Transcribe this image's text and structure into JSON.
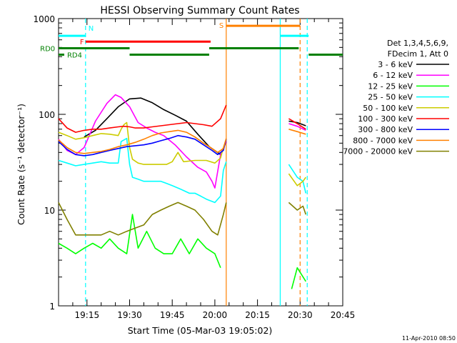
{
  "chart_data": {
    "type": "line",
    "title": "HESSI Observing Summary Count Rates",
    "xlabel": "Start Time (05-Mar-03 19:05:02)",
    "ylabel": "Count Rate (s⁻¹ detector⁻¹)",
    "y_scale": "log",
    "xlim_minutes": [
      0,
      100
    ],
    "ylim": [
      1,
      1000
    ],
    "x_ticks": [
      {
        "label": "19:15",
        "t": 10
      },
      {
        "label": "19:30",
        "t": 25
      },
      {
        "label": "19:45",
        "t": 40
      },
      {
        "label": "20:00",
        "t": 55
      },
      {
        "label": "20:15",
        "t": 70
      },
      {
        "label": "20:30",
        "t": 85
      },
      {
        "label": "20:45",
        "t": 100
      }
    ],
    "y_ticks": [
      {
        "label": "1",
        "v": 1
      },
      {
        "label": "10",
        "v": 10
      },
      {
        "label": "100",
        "v": 100
      },
      {
        "label": "1000",
        "v": 1000
      }
    ],
    "legend": {
      "placement": "right",
      "header": [
        "Det 1,3,4,5,6,9,",
        "FDecim 1, Att 0"
      ]
    },
    "series": [
      {
        "name": "3 - 6 keV",
        "color": "#000000",
        "points": [
          [
            9,
            58
          ],
          [
            13,
            68
          ],
          [
            17,
            90
          ],
          [
            21,
            120
          ],
          [
            25,
            145
          ],
          [
            29,
            148
          ],
          [
            33,
            132
          ],
          [
            37,
            112
          ],
          [
            41,
            98
          ],
          [
            45,
            85
          ],
          [
            49,
            62
          ],
          [
            53,
            46
          ],
          [
            57,
            38
          ],
          [
            59,
            52
          ],
          null,
          [
            81,
            85
          ],
          [
            84,
            82
          ],
          [
            87,
            76
          ]
        ]
      },
      {
        "name": "6 - 12 keV",
        "color": "#ff00ff",
        "points": [
          [
            0,
            55
          ],
          [
            3,
            42
          ],
          [
            6,
            38
          ],
          [
            9,
            45
          ],
          [
            13,
            85
          ],
          [
            17,
            130
          ],
          [
            20,
            160
          ],
          [
            22,
            150
          ],
          [
            25,
            120
          ],
          [
            28,
            82
          ],
          [
            31,
            72
          ],
          [
            34,
            65
          ],
          [
            37,
            60
          ],
          [
            41,
            48
          ],
          [
            45,
            36
          ],
          [
            49,
            28
          ],
          [
            52,
            25
          ],
          [
            54,
            20
          ],
          [
            55,
            17
          ],
          [
            57,
            38
          ],
          [
            59,
            52
          ],
          null,
          [
            81,
            80
          ],
          [
            84,
            75
          ],
          [
            87,
            68
          ]
        ]
      },
      {
        "name": "12 - 25 keV",
        "color": "#00ff00",
        "points": [
          [
            0,
            4.5
          ],
          [
            3,
            4
          ],
          [
            6,
            3.5
          ],
          [
            9,
            4
          ],
          [
            12,
            4.5
          ],
          [
            15,
            4
          ],
          [
            18,
            5
          ],
          [
            21,
            4
          ],
          [
            24,
            3.5
          ],
          [
            26,
            9
          ],
          [
            28,
            4
          ],
          [
            31,
            6
          ],
          [
            34,
            4
          ],
          [
            37,
            3.5
          ],
          [
            40,
            3.5
          ],
          [
            43,
            5
          ],
          [
            46,
            3.5
          ],
          [
            49,
            5
          ],
          [
            52,
            4
          ],
          [
            55,
            3.5
          ],
          [
            57,
            2.5
          ],
          null,
          [
            82,
            1.5
          ],
          [
            84,
            2.5
          ],
          [
            87,
            1.8
          ]
        ]
      },
      {
        "name": "25 - 50 keV",
        "color": "#00ffff",
        "points": [
          [
            0,
            33
          ],
          [
            3,
            31
          ],
          [
            6,
            29
          ],
          [
            9,
            30
          ],
          [
            12,
            31
          ],
          [
            15,
            32
          ],
          [
            18,
            31
          ],
          [
            21,
            31
          ],
          [
            22,
            52
          ],
          [
            24,
            56
          ],
          [
            25,
            30
          ],
          [
            26,
            22
          ],
          [
            28,
            21
          ],
          [
            30,
            20
          ],
          [
            33,
            20
          ],
          [
            36,
            20
          ],
          [
            38,
            19
          ],
          [
            40,
            18
          ],
          [
            42,
            17
          ],
          [
            44,
            16
          ],
          [
            46,
            15
          ],
          [
            48,
            15
          ],
          [
            50,
            14
          ],
          [
            52,
            13
          ],
          [
            55,
            12
          ],
          [
            57,
            14
          ],
          [
            58,
            26
          ],
          [
            59,
            32
          ],
          null,
          [
            81,
            30
          ],
          [
            84,
            22
          ],
          [
            86,
            20
          ],
          [
            87,
            15
          ]
        ]
      },
      {
        "name": "50 - 100 keV",
        "color": "#cccc00",
        "points": [
          [
            0,
            65
          ],
          [
            3,
            60
          ],
          [
            6,
            55
          ],
          [
            9,
            57
          ],
          [
            12,
            60
          ],
          [
            15,
            63
          ],
          [
            18,
            62
          ],
          [
            21,
            60
          ],
          [
            22,
            70
          ],
          [
            23,
            78
          ],
          [
            24,
            82
          ],
          [
            25,
            45
          ],
          [
            26,
            34
          ],
          [
            28,
            31
          ],
          [
            30,
            30
          ],
          [
            34,
            30
          ],
          [
            38,
            30
          ],
          [
            40,
            32
          ],
          [
            42,
            40
          ],
          [
            44,
            32
          ],
          [
            48,
            33
          ],
          [
            52,
            33
          ],
          [
            55,
            31
          ],
          [
            57,
            35
          ],
          [
            58,
            45
          ],
          [
            59,
            55
          ],
          null,
          [
            81,
            24
          ],
          [
            84,
            18
          ],
          [
            86,
            20
          ],
          [
            87,
            22
          ]
        ]
      },
      {
        "name": "100 - 300 keV",
        "color": "#ff0000",
        "points": [
          [
            0,
            90
          ],
          [
            3,
            72
          ],
          [
            6,
            65
          ],
          [
            9,
            68
          ],
          [
            12,
            70
          ],
          [
            15,
            70
          ],
          [
            18,
            72
          ],
          [
            21,
            74
          ],
          [
            23,
            75
          ],
          [
            25,
            74
          ],
          [
            27,
            72
          ],
          [
            30,
            72
          ],
          [
            33,
            74
          ],
          [
            36,
            76
          ],
          [
            39,
            78
          ],
          [
            42,
            80
          ],
          [
            45,
            82
          ],
          [
            48,
            80
          ],
          [
            51,
            78
          ],
          [
            54,
            75
          ],
          [
            57,
            90
          ],
          [
            59,
            125
          ],
          null,
          [
            81,
            90
          ],
          [
            84,
            80
          ],
          [
            87,
            70
          ]
        ]
      },
      {
        "name": "300 - 800 keV",
        "color": "#0000ff",
        "points": [
          [
            0,
            52
          ],
          [
            3,
            43
          ],
          [
            6,
            38
          ],
          [
            9,
            37
          ],
          [
            12,
            38
          ],
          [
            15,
            40
          ],
          [
            18,
            42
          ],
          [
            21,
            44
          ],
          [
            24,
            46
          ],
          [
            27,
            47
          ],
          [
            30,
            48
          ],
          [
            33,
            50
          ],
          [
            36,
            53
          ],
          [
            39,
            56
          ],
          [
            42,
            60
          ],
          [
            45,
            58
          ],
          [
            48,
            55
          ],
          [
            51,
            48
          ],
          [
            54,
            42
          ],
          [
            56,
            38
          ],
          [
            58,
            42
          ],
          [
            59,
            55
          ]
        ]
      },
      {
        "name": "800 - 7000 keV",
        "color": "#ff8000",
        "points": [
          [
            0,
            54
          ],
          [
            3,
            45
          ],
          [
            6,
            40
          ],
          [
            9,
            39
          ],
          [
            12,
            40
          ],
          [
            15,
            41
          ],
          [
            18,
            43
          ],
          [
            21,
            46
          ],
          [
            24,
            48
          ],
          [
            27,
            51
          ],
          [
            30,
            55
          ],
          [
            33,
            60
          ],
          [
            36,
            64
          ],
          [
            39,
            66
          ],
          [
            42,
            68
          ],
          [
            45,
            65
          ],
          [
            48,
            58
          ],
          [
            51,
            50
          ],
          [
            54,
            44
          ],
          [
            56,
            40
          ],
          [
            58,
            44
          ],
          [
            59,
            56
          ],
          null,
          [
            81,
            70
          ],
          [
            84,
            66
          ],
          [
            87,
            62
          ]
        ]
      },
      {
        "name": "7000 - 20000 keV",
        "color": "#808000",
        "points": [
          [
            0,
            12
          ],
          [
            3,
            8
          ],
          [
            6,
            5.5
          ],
          [
            9,
            5.5
          ],
          [
            12,
            5.5
          ],
          [
            15,
            5.5
          ],
          [
            18,
            6
          ],
          [
            21,
            5.5
          ],
          [
            24,
            6
          ],
          [
            27,
            6.5
          ],
          [
            30,
            7
          ],
          [
            33,
            9
          ],
          [
            36,
            10
          ],
          [
            39,
            11
          ],
          [
            42,
            12
          ],
          [
            45,
            11
          ],
          [
            48,
            10
          ],
          [
            51,
            8
          ],
          [
            54,
            6
          ],
          [
            56,
            5.5
          ],
          [
            58,
            9
          ],
          [
            59,
            12
          ],
          null,
          [
            81,
            12
          ],
          [
            84,
            10
          ],
          [
            86,
            11
          ],
          [
            87,
            9
          ]
        ]
      }
    ],
    "flag_bars": [
      {
        "label": "N",
        "color": "#00ffff",
        "t_start": 0,
        "t_end": 9.5,
        "v": 660,
        "label_t": 10.5,
        "label_v": 800
      },
      {
        "label": "",
        "color": "#00ffff",
        "t_start": 78,
        "t_end": 88,
        "v": 660
      },
      {
        "label": "F",
        "color": "#ff0000",
        "t_start": 9.5,
        "t_end": 53.5,
        "v": 575,
        "label_t": 7.5,
        "label_v": 575
      },
      {
        "label": "S",
        "color": "#ff8000",
        "t_start": 59,
        "t_end": 85,
        "v": 840,
        "label_t": 56.5,
        "label_v": 860
      },
      {
        "label": "RD0",
        "color": "#008000",
        "t_start": 0,
        "t_end": 25,
        "v": 490,
        "label_t": -6.5,
        "label_v": 490
      },
      {
        "label": "",
        "color": "#008000",
        "t_start": 53,
        "t_end": 84.5,
        "v": 490
      },
      {
        "label": "RD4",
        "color": "#008000",
        "t_start": 0,
        "t_end": 2,
        "v": 420,
        "label_t": 3,
        "label_v": 420
      },
      {
        "label": "",
        "color": "#008000",
        "t_start": 25,
        "t_end": 53,
        "v": 420
      },
      {
        "label": "",
        "color": "#008000",
        "t_start": 88,
        "t_end": 100,
        "v": 420
      }
    ],
    "vertical_markers": [
      {
        "t": 9.5,
        "color": "#00ffff",
        "dash": true
      },
      {
        "t": 59,
        "color": "#ff8000",
        "dash": false
      },
      {
        "t": 78,
        "color": "#00ffff",
        "dash": false
      },
      {
        "t": 85,
        "color": "#ff8000",
        "dash": true
      },
      {
        "t": 87.5,
        "color": "#00ffff",
        "dash": true
      }
    ],
    "footer_date": "11-Apr-2010 08:50"
  }
}
